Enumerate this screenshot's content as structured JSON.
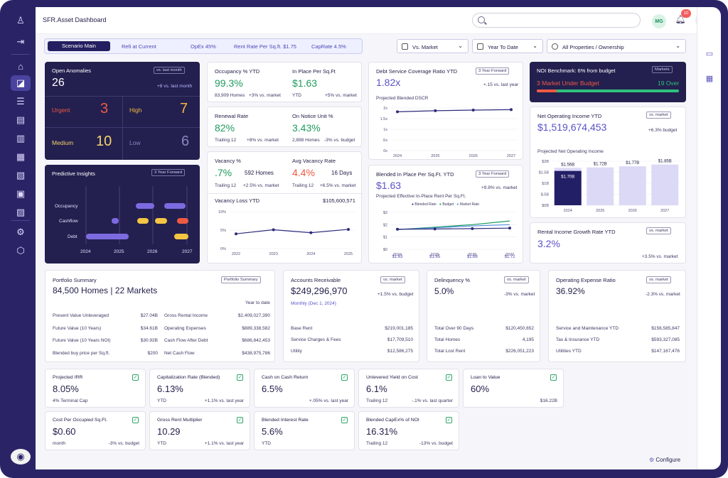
{
  "app": {
    "title": "SFR.Asset Dashboard",
    "user_initials": "MG",
    "notif_count": "10",
    "configure": "Configure"
  },
  "scenario": {
    "main": "Scenario Main",
    "refi": "Refi at Current",
    "opex": "OpEx 45%",
    "rent_rate": "Rent Rate Per Sq.ft. $1.75",
    "caprate": "CapRate 4.5%"
  },
  "filters": {
    "market": "Vs. Market",
    "period": "Year To Date",
    "properties": "All Properties / Ownership"
  },
  "anomalies": {
    "title": "Open Anomalies",
    "pill": "vs. last month",
    "count": "26",
    "delta": "+8 vs. last month",
    "urgent_label": "Urgent",
    "urgent": "3",
    "high_label": "High",
    "high": "7",
    "medium_label": "Medium",
    "medium": "10",
    "low_label": "Low",
    "low": "6"
  },
  "insights": {
    "title": "Predictive Insights",
    "pill": "3 Year Forward",
    "rows": [
      "Occupancy",
      "Cashflow",
      "Debt"
    ],
    "years": [
      "2024",
      "2025",
      "2026",
      "2027"
    ]
  },
  "occupancy": {
    "label": "Occupancy % YTD",
    "value": "99.3%",
    "sub": "83,909 Homes",
    "delta": "+3% vs. market"
  },
  "inplace": {
    "label": "In Place Per Sq.Ft",
    "value": "$1.63",
    "sub": "YTD",
    "delta": "+5% vs. market"
  },
  "renewal": {
    "label": "Renewal Rate",
    "value": "82%",
    "sub": "Trailing 12",
    "delta": "+8% vs. market"
  },
  "notice": {
    "label": "On Notice Unit %",
    "value": "3.43%",
    "sub": "2,898 Homes",
    "delta": "-3% vs. budget"
  },
  "vacancy": {
    "label": "Vacancy %",
    "value": ".7%",
    "homes": "592 Homes",
    "sub": "Trailing 12",
    "delta": "+2.5% vs. market"
  },
  "avgvac": {
    "label": "Avg Vacancy Rate",
    "value": "4.4%",
    "days": "16 Days",
    "sub": "Trailing 12",
    "delta": "+6.5% vs. market"
  },
  "vacloss": {
    "label": "Vacancy Loss YTD",
    "value": "$105,600,571"
  },
  "dscr": {
    "label": "Debt Service Coverage Ratio YTD",
    "pill": "3 Year Forward",
    "value": "1.82x",
    "delta": "+.15 vs. last year",
    "chart_label": "Projected Blended DSCR"
  },
  "blended": {
    "label": "Blended In Place Per Sq.Ft. YTD",
    "pill": "3 Year Forward",
    "value": "$1.63",
    "delta": "+9.8% vs. market",
    "chart_label": "Projected Effective In-Place Rent Per Sq.Ft.",
    "legend": [
      "Blended Rate",
      "Budget",
      "Market Rate"
    ],
    "point_labels": [
      "$1.63",
      "$1.65",
      "$1.68",
      "$1.72"
    ]
  },
  "noibench": {
    "label": "NOI Benchmark: 6% from budget",
    "pill": "Markets",
    "under": "3 Market Under Budget",
    "over": "19 Over"
  },
  "noi": {
    "label": "Net Operating Income YTD",
    "pill": "vs. market",
    "value": "$1,519,674,453",
    "delta": "+6.3% budget",
    "chart_label": "Projected Net Operating Income",
    "bar_labels": [
      "$1.56B",
      "$1.70B",
      "$1.72B",
      "$1.77B",
      "$1.85B"
    ]
  },
  "rig": {
    "label": "Rental Income Growth Rate YTD",
    "pill": "vs. market",
    "value": "3.2%",
    "delta": "+3.5% vs. market"
  },
  "portfolio": {
    "title": "Portfolio Summary",
    "pill": "Portfolio Summary",
    "headline": "84,500 Homes | 22 Markets",
    "ytd": "Year to date",
    "left": [
      {
        "k": "Present Value Unleveraged",
        "v": "$27.04B"
      },
      {
        "k": "Future Value (10 Years)",
        "v": "$34.61B"
      },
      {
        "k": "Future Value (10 Years NOI)",
        "v": "$30.92B"
      },
      {
        "k": "Blended buy price per Sq.ft.",
        "v": "$200"
      }
    ],
    "right": [
      {
        "k": "Gross Rental Income",
        "v": "$2,409,027,390"
      },
      {
        "k": "Operating Expenses",
        "v": "$889,338,582"
      },
      {
        "k": "Cash Flow After Debt",
        "v": "$686,842,453"
      },
      {
        "k": "Net Cash Flow",
        "v": "$438,975,786"
      }
    ]
  },
  "ar": {
    "label": "Accounts Receivable",
    "pill": "vs. market",
    "value": "$249,296,970",
    "delta": "+1.5% vs. budget",
    "date": "Monthly (Dec 1, 2024)",
    "rows": [
      {
        "k": "Base Rent",
        "v": "$219,001,185"
      },
      {
        "k": "Service Charges & Fees",
        "v": "$17,709,510"
      },
      {
        "k": "Utility",
        "v": "$12,586,275"
      }
    ]
  },
  "delinq": {
    "label": "Delinquency %",
    "pill": "vs. market",
    "value": "5.0%",
    "delta": "-3% vs. market",
    "rows": [
      {
        "k": "Total Over 90 Days",
        "v": "$120,450,652"
      },
      {
        "k": "Total Homes",
        "v": "4,195"
      },
      {
        "k": "Total Lost Rent",
        "v": "$226,051,223"
      }
    ]
  },
  "oer": {
    "label": "Operating Expense Ratio",
    "pill": "vs. market",
    "value": "36.92%",
    "delta": "-2.3% vs. market",
    "rows": [
      {
        "k": "Service and Maintenance YTD",
        "v": "$156,585,847"
      },
      {
        "k": "Tax & Insurance YTD",
        "v": "$593,327,085"
      },
      {
        "k": "Utilities YTD",
        "v": "$147,167,476"
      }
    ]
  },
  "kpis": [
    {
      "label": "Projected IRR",
      "value": "8.05%",
      "sub": "4% Terminal Cap",
      "delta": ""
    },
    {
      "label": "Capitalization Rate (Blended)",
      "value": "6.13%",
      "sub": "YTD",
      "delta": "+1.1% vs. last year"
    },
    {
      "label": "Cash on Cash Return",
      "value": "6.5%",
      "sub": "",
      "delta": "+.05% vs. last year"
    },
    {
      "label": "Unlevered Yield on Cost",
      "value": "6.1%",
      "sub": "Trailing 12",
      "delta": "-.1% vs. last quarter"
    },
    {
      "label": "Loan to Value",
      "value": "60%",
      "sub": "",
      "delta": "$16.22B"
    },
    {
      "label": "Cost Per Occupied Sq.Ft.",
      "value": "$0.60",
      "sub": "month",
      "delta": "-3% vs. budget"
    },
    {
      "label": "Gross Rent Multiplier",
      "value": "10.29",
      "sub": "YTD",
      "delta": "+1.1% vs. last year"
    },
    {
      "label": "Blended Interest Rate",
      "value": "5.6%",
      "sub": "YTD",
      "delta": ""
    },
    {
      "label": "Blended CapEx% of NOI",
      "value": "16.31%",
      "sub": "Trailing 12",
      "delta": "-13% vs. budget"
    }
  ],
  "chart_data": [
    {
      "type": "line",
      "title": "Projected Blended DSCR",
      "categories": [
        "2024",
        "2025",
        "2026",
        "2027"
      ],
      "values": [
        1.82,
        1.87,
        1.9,
        1.92
      ],
      "yticks": [
        "2x",
        "1.5x",
        "1x",
        ".5x",
        "0x"
      ],
      "ylim": [
        0,
        2
      ]
    },
    {
      "type": "line",
      "title": "Projected Effective In-Place Rent Per Sq.Ft.",
      "categories": [
        "2024",
        "2025",
        "2026",
        "2027"
      ],
      "series": [
        {
          "name": "Blended Rate",
          "values": [
            1.63,
            1.65,
            1.68,
            1.72
          ]
        },
        {
          "name": "Budget",
          "values": [
            1.6,
            1.8,
            2.0,
            2.3
          ]
        },
        {
          "name": "Market Rate",
          "values": [
            1.6,
            1.75,
            1.9,
            2.0
          ]
        }
      ],
      "yticks": [
        "$3",
        "$2",
        "$1",
        "$0"
      ],
      "ylim": [
        0,
        3
      ],
      "colors": [
        "#2d2a7a",
        "#1e9a5c",
        "#4f8fe0"
      ]
    },
    {
      "type": "bar",
      "title": "Projected Net Operating Income",
      "categories": [
        "2024",
        "2025",
        "2026",
        "2027"
      ],
      "values": [
        1.56,
        1.72,
        1.77,
        1.85
      ],
      "budget_2024": 1.7,
      "yticks": [
        "$2B",
        "$1.5B",
        "$1B",
        "$.5B",
        "$0B"
      ],
      "ylim": [
        0,
        2
      ]
    },
    {
      "type": "line",
      "title": "Vacancy Loss YTD",
      "categories": [
        "2022",
        "2023",
        "2024",
        "2025"
      ],
      "values": [
        4,
        5.1,
        4.3,
        5.2
      ],
      "yticks": [
        "10%",
        "5%",
        "0%"
      ],
      "ylim": [
        0,
        10
      ]
    }
  ]
}
